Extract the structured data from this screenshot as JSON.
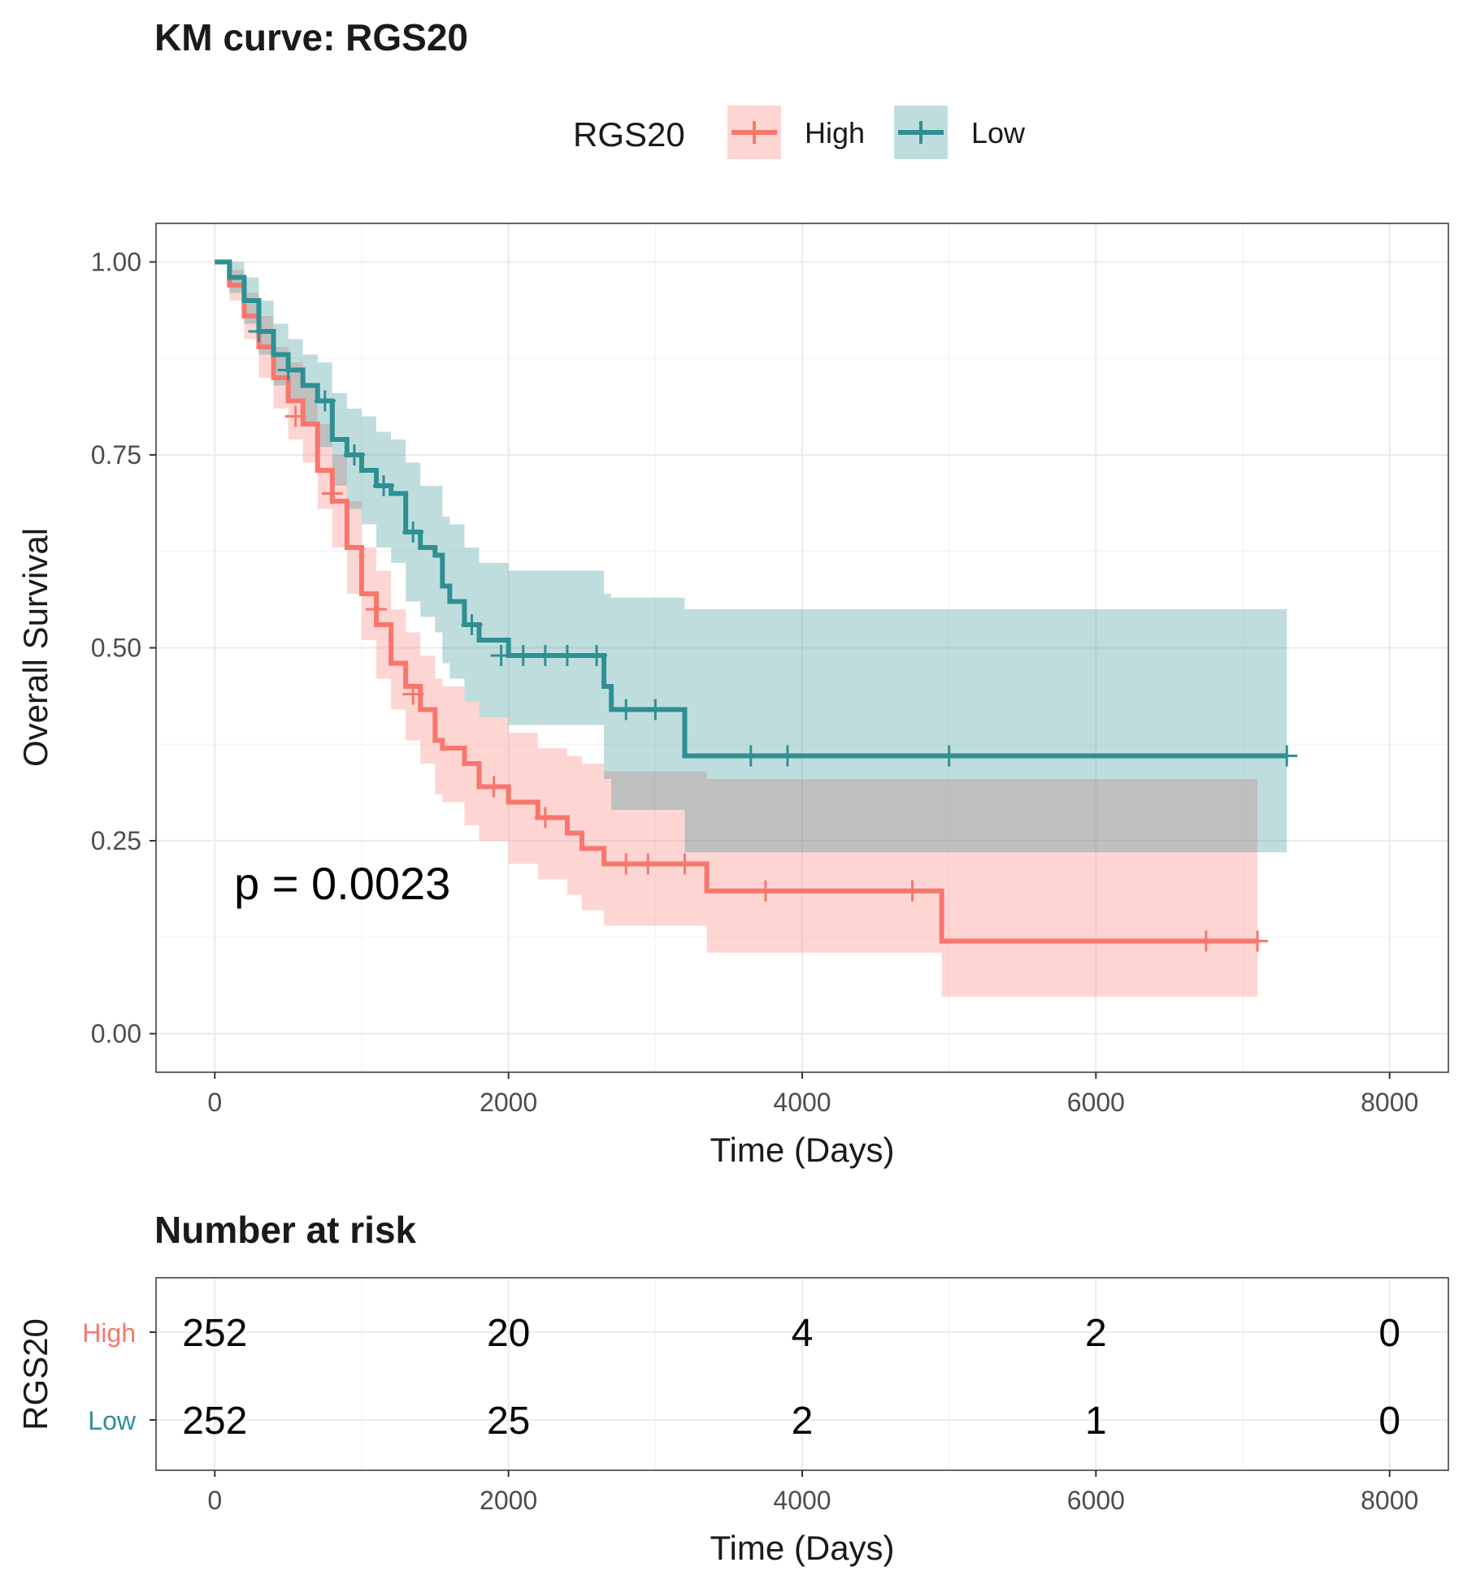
{
  "chart_data": [
    {
      "type": "line",
      "title": "KM curve: RGS20",
      "xlabel": "Time (Days)",
      "ylabel": "Overall Survival",
      "xlim": [
        -400,
        8400
      ],
      "ylim": [
        -0.05,
        1.05
      ],
      "x_ticks": [
        "0",
        "2000",
        "4000",
        "6000",
        "8000"
      ],
      "y_ticks": [
        "0.00",
        "0.25",
        "0.50",
        "0.75",
        "1.00"
      ],
      "grid": true,
      "legend": {
        "title": "RGS20",
        "position": "top",
        "entries": [
          "High",
          "Low"
        ]
      },
      "annotation": "p = 0.0023",
      "series": [
        {
          "name": "High",
          "color": "#F8766D",
          "ci_color": "#F8766D",
          "x": [
            0,
            100,
            200,
            300,
            400,
            500,
            600,
            700,
            800,
            900,
            1000,
            1100,
            1200,
            1300,
            1400,
            1500,
            1550,
            1700,
            1800,
            2000,
            2200,
            2400,
            2500,
            2650,
            3350,
            4950,
            7100
          ],
          "y": [
            1.0,
            0.97,
            0.93,
            0.89,
            0.85,
            0.82,
            0.79,
            0.73,
            0.69,
            0.63,
            0.57,
            0.53,
            0.48,
            0.45,
            0.42,
            0.38,
            0.37,
            0.35,
            0.32,
            0.3,
            0.28,
            0.26,
            0.24,
            0.22,
            0.185,
            0.12,
            0.12
          ],
          "lower": [
            1.0,
            0.95,
            0.9,
            0.85,
            0.81,
            0.77,
            0.74,
            0.68,
            0.63,
            0.57,
            0.51,
            0.46,
            0.42,
            0.38,
            0.35,
            0.31,
            0.3,
            0.27,
            0.25,
            0.22,
            0.2,
            0.18,
            0.16,
            0.14,
            0.105,
            0.048,
            0.048
          ],
          "upper": [
            1.0,
            0.99,
            0.96,
            0.93,
            0.89,
            0.87,
            0.84,
            0.79,
            0.75,
            0.69,
            0.63,
            0.6,
            0.55,
            0.52,
            0.49,
            0.46,
            0.45,
            0.43,
            0.41,
            0.39,
            0.37,
            0.36,
            0.35,
            0.34,
            0.33,
            0.33,
            0.33
          ],
          "censored": [
            [
              550,
              0.8
            ],
            [
              800,
              0.7
            ],
            [
              1100,
              0.55
            ],
            [
              1350,
              0.44
            ],
            [
              1900,
              0.32
            ],
            [
              2250,
              0.28
            ],
            [
              2800,
              0.22
            ],
            [
              2950,
              0.22
            ],
            [
              3200,
              0.22
            ],
            [
              3750,
              0.185
            ],
            [
              4750,
              0.185
            ],
            [
              6750,
              0.12
            ],
            [
              7100,
              0.12
            ]
          ]
        },
        {
          "name": "Low",
          "color": "#2E9093",
          "ci_color": "#2E9093",
          "x": [
            0,
            100,
            200,
            300,
            400,
            500,
            600,
            700,
            800,
            900,
            1000,
            1100,
            1200,
            1300,
            1400,
            1500,
            1550,
            1600,
            1700,
            1800,
            2000,
            2400,
            2650,
            2700,
            3150,
            3200,
            7250,
            7300
          ],
          "y": [
            1.0,
            0.98,
            0.95,
            0.91,
            0.88,
            0.86,
            0.84,
            0.82,
            0.77,
            0.75,
            0.73,
            0.71,
            0.7,
            0.65,
            0.63,
            0.62,
            0.58,
            0.56,
            0.53,
            0.51,
            0.49,
            0.49,
            0.45,
            0.42,
            0.42,
            0.36,
            0.36,
            0.36
          ],
          "lower": [
            1.0,
            0.96,
            0.92,
            0.88,
            0.84,
            0.82,
            0.79,
            0.76,
            0.71,
            0.68,
            0.66,
            0.63,
            0.61,
            0.56,
            0.54,
            0.52,
            0.48,
            0.46,
            0.43,
            0.41,
            0.4,
            0.4,
            0.33,
            0.29,
            0.29,
            0.235,
            0.235,
            0.235
          ],
          "upper": [
            1.0,
            1.0,
            0.98,
            0.95,
            0.92,
            0.9,
            0.88,
            0.87,
            0.83,
            0.81,
            0.8,
            0.78,
            0.77,
            0.74,
            0.71,
            0.71,
            0.67,
            0.66,
            0.63,
            0.61,
            0.6,
            0.6,
            0.57,
            0.565,
            0.565,
            0.55,
            0.55,
            0.55
          ]
        }
      ]
    },
    {
      "type": "table",
      "title": "Number at risk",
      "xlabel": "Time (Days)",
      "ylabel": "RGS20",
      "x_ticks": [
        "0",
        "2000",
        "4000",
        "6000",
        "8000"
      ],
      "columns": [
        0,
        2000,
        4000,
        6000,
        8000
      ],
      "rows": [
        {
          "name": "High",
          "color": "#F8766D",
          "values": [
            "252",
            "20",
            "4",
            "2",
            "0"
          ]
        },
        {
          "name": "Low",
          "color": "#2E9093",
          "values": [
            "252",
            "25",
            "2",
            "1",
            "0"
          ]
        }
      ]
    }
  ]
}
